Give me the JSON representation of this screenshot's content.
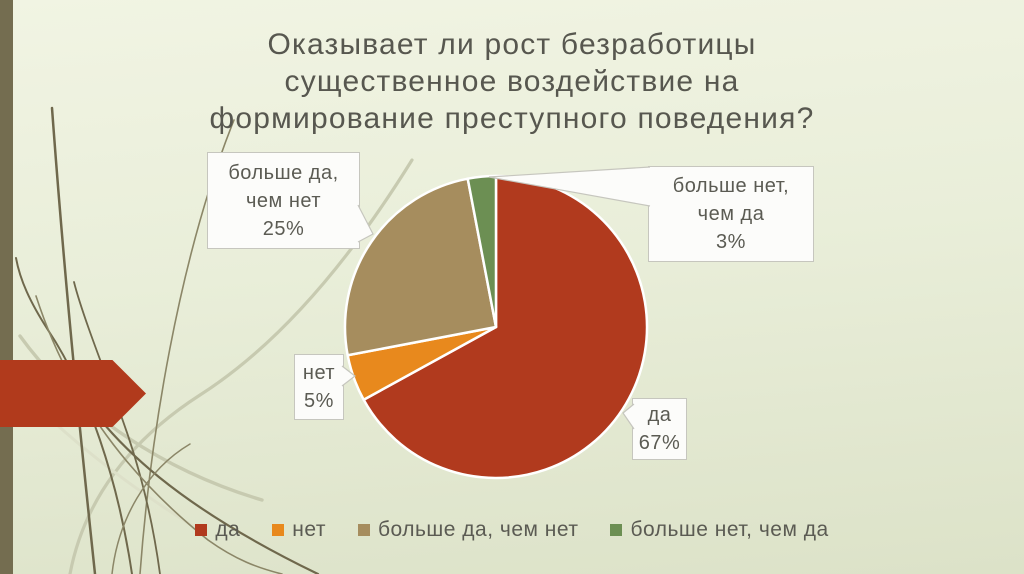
{
  "slide": {
    "title": "Оказывает ли рост безработицы\nсущественное воздействие на\nформирование преступного поведения?"
  },
  "chart_data": {
    "type": "pie",
    "title": "Оказывает ли рост безработицы существенное воздействие на формирование преступного поведения?",
    "unit": "percent",
    "start_angle_deg": 0,
    "direction": "clockwise",
    "legend_position": "bottom",
    "grid": false,
    "slices": [
      {
        "label": "да",
        "value": 67,
        "color": "#B13A1E",
        "data_label": "да\n67%"
      },
      {
        "label": "нет",
        "value": 5,
        "color": "#E8891D",
        "data_label": "нет\n5%"
      },
      {
        "label": "больше да, чем нет",
        "value": 25,
        "color": "#A68D5E",
        "data_label": "больше да,\nчем нет\n25%"
      },
      {
        "label": "больше нет, чем да",
        "value": 3,
        "color": "#6C8F53",
        "data_label": "больше нет,\nчем да\n3%"
      }
    ]
  },
  "colors": {
    "background_top": "#F1F4E3",
    "background_bottom": "#DCE2C8",
    "left_bar": "#746D50",
    "arrow": "#B13A1C",
    "title_text": "#57574F",
    "callout_text": "#5B5B53",
    "callout_bg": "#FCFCFA",
    "callout_border": "#C6C6BE",
    "grass_dark": "#6F684C",
    "grass_mid": "#8B8667",
    "grass_light": "#C7CAB0",
    "pie_slice_stroke": "#FFFFFF"
  }
}
